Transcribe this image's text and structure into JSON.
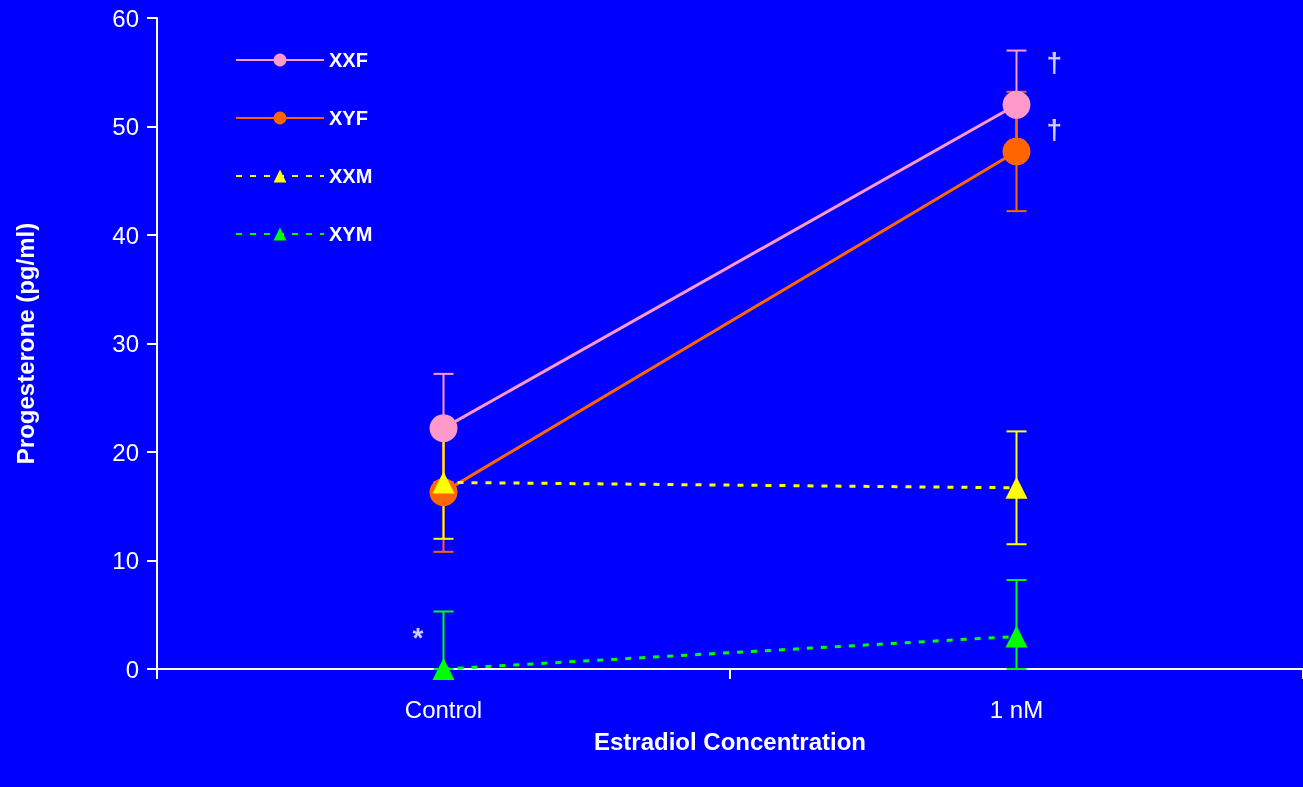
{
  "chart_data": {
    "type": "line",
    "xlabel": "Estradiol Concentration",
    "ylabel": "Progesterone (pg/ml)",
    "categories": [
      "Control",
      "1 nM"
    ],
    "ylim": [
      0,
      60
    ],
    "yticks": [
      0,
      10,
      20,
      30,
      40,
      50,
      60
    ],
    "grid": false,
    "legend": "top left",
    "series": [
      {
        "name": "XXF",
        "color": "#ff99cc",
        "values": [
          22.2,
          52
        ],
        "errors": [
          5,
          5
        ],
        "marker": "circle",
        "line_style": "solid"
      },
      {
        "name": "XYF",
        "color": "#ff6600",
        "values": [
          16.3,
          47.7
        ],
        "errors": [
          5.5,
          5.5
        ],
        "marker": "circle",
        "line_style": "solid"
      },
      {
        "name": "XXM",
        "color": "#ffff00",
        "values": [
          17.2,
          16.7
        ],
        "errors": [
          5.2,
          5.2
        ],
        "marker": "triangle",
        "line_style": "dashed"
      },
      {
        "name": "XYM",
        "color": "#00ff00",
        "values": [
          0,
          3
        ],
        "errors": [
          [
            0,
            5.3
          ],
          [
            0,
            8.2
          ]
        ],
        "marker": "triangle",
        "line_style": "dashed"
      }
    ],
    "annotations": [
      {
        "text": "*",
        "x": "Control",
        "y": 2.9
      },
      {
        "text": "†",
        "x": "1 nM",
        "y": 55.9
      },
      {
        "text": "†",
        "x": "1 nM",
        "y": 49.7
      }
    ]
  }
}
